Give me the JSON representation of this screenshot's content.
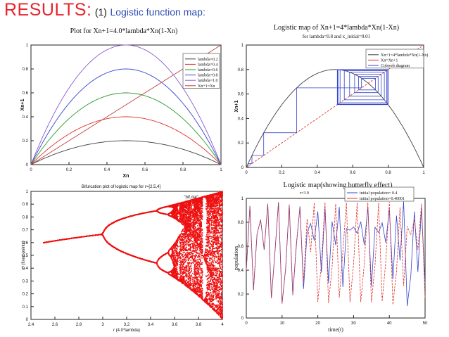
{
  "slide": {
    "heading": "RESULTS:",
    "number": "(1)",
    "subtitle": "Logistic function map:"
  },
  "chart_data": [
    {
      "type": "line",
      "title": "Plot for Xn+1=4.0*lambda*Xn(1-Xn)",
      "xlabel": "Xn",
      "ylabel": "Xn+1",
      "xlim": [
        0,
        1
      ],
      "ylim": [
        0,
        1
      ],
      "xticks": [
        "0",
        "0.2",
        "0.4",
        "0.6",
        "0.8",
        "1"
      ],
      "yticks": [
        "0",
        "0.2",
        "0.4",
        "0.6",
        "0.8",
        "1"
      ],
      "legend_position": "top-right",
      "series": [
        {
          "name": "lambda=0.2",
          "lambda": 0.2,
          "formula": "4*lambda*x*(1-x)",
          "peak": 0.2,
          "color": "#404040"
        },
        {
          "name": "lambda=0.4",
          "lambda": 0.4,
          "formula": "4*lambda*x*(1-x)",
          "peak": 0.4,
          "color": "#e0302a"
        },
        {
          "name": "lambda=0.6",
          "lambda": 0.6,
          "formula": "4*lambda*x*(1-x)",
          "peak": 0.6,
          "color": "#2a9a2a"
        },
        {
          "name": "lambda=0.8",
          "lambda": 0.8,
          "formula": "4*lambda*x*(1-x)",
          "peak": 0.8,
          "color": "#3344cc"
        },
        {
          "name": "lambda=1.0",
          "lambda": 1.0,
          "formula": "4*lambda*x*(1-x)",
          "peak": 1.0,
          "color": "#8a5ad0"
        },
        {
          "name": "Xn+1=Xn",
          "formula": "x",
          "color": "#c04040"
        }
      ]
    },
    {
      "type": "line",
      "title": "Logistic map of Xn+1=4*lambda*Xn(1-Xn)",
      "subtitle": "for lambda=0.8 and  x_initial=0.01",
      "xlabel": "",
      "ylabel": "Xn+1",
      "xlim": [
        0,
        1
      ],
      "ylim": [
        0,
        1
      ],
      "xticks": [
        "0",
        "0.2",
        "0.4",
        "0.6",
        "0.8",
        "1"
      ],
      "yticks": [
        "0",
        "0.2",
        "0.4",
        "0.6",
        "0.8",
        "1"
      ],
      "legend_position": "top-right",
      "lambda": 0.8,
      "x_initial": 0.01,
      "series": [
        {
          "name": "Xn+1=4*lambda*Xn(1-Xn)",
          "color": "#404040"
        },
        {
          "name": "Xn=Xn+1",
          "color": "#e0302a"
        },
        {
          "name": "Cobweb diagram",
          "color": "#3344cc"
        }
      ]
    },
    {
      "type": "scatter",
      "title": "Bifurcation plot of logistic map for r=[2.5,4]",
      "xlabel": "r (4.0*lambda)",
      "ylabel": "x* (fixed points)",
      "xlim": [
        2.4,
        4.0
      ],
      "ylim": [
        0,
        1
      ],
      "xticks": [
        "2.4",
        "2.6",
        "2.8",
        "3",
        "3.2",
        "3.4",
        "3.6",
        "3.8",
        "4"
      ],
      "yticks": [
        "0",
        "0.1",
        "0.2",
        "0.3",
        "0.4",
        "0.5",
        "0.6",
        "0.7",
        "0.8",
        "0.9",
        "1"
      ],
      "r_range": [
        2.5,
        4.0
      ],
      "legend_position": "top-right",
      "series": [
        {
          "name": "\"bif.dat\"",
          "color": "#ee1111"
        }
      ]
    },
    {
      "type": "line",
      "title": "Logistic map(showing butterfly effect)",
      "subtitle": "r=3.9",
      "xlabel": "time(t)",
      "ylabel": "population",
      "xlim": [
        0,
        50
      ],
      "ylim": [
        0,
        1
      ],
      "xticks": [
        "0",
        "10",
        "20",
        "30",
        "40",
        "50"
      ],
      "yticks": [
        "0",
        "0.2",
        "0.4",
        "0.6",
        "0.8",
        "1"
      ],
      "r": 3.9,
      "legend_position": "top-right",
      "series": [
        {
          "name": "initial population= 0.4",
          "x0": 0.4,
          "color": "#3344cc"
        },
        {
          "name": "initial population=0.40001",
          "x0": 0.40001,
          "color": "#e0302a"
        }
      ]
    }
  ]
}
